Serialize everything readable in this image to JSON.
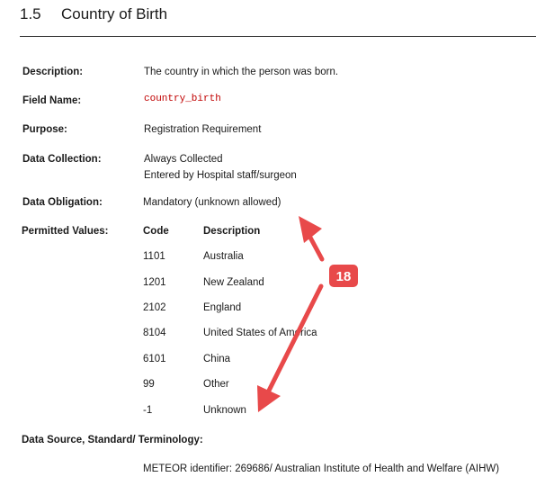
{
  "section": {
    "number": "1.5",
    "title": "Country of Birth"
  },
  "fields": {
    "description_label": "Description:",
    "description_value": "The country in which the person was born.",
    "field_name_label": "Field Name:",
    "field_name_value": "country_birth",
    "purpose_label": "Purpose:",
    "purpose_value": "Registration Requirement",
    "data_collection_label": "Data Collection:",
    "data_collection_line1": "Always Collected",
    "data_collection_line2": "Entered by Hospital staff/surgeon",
    "data_obligation_label": "Data Obligation:",
    "data_obligation_value": "Mandatory (unknown allowed)",
    "permitted_values_label": "Permitted Values:",
    "data_source_label": "Data Source, Standard/ Terminology:",
    "data_source_value": "METEOR identifier: 269686/ Australian Institute of Health and Welfare (AIHW)"
  },
  "permitted_values": {
    "headers": [
      "Code",
      "Description"
    ],
    "rows": [
      [
        "1101",
        "Australia"
      ],
      [
        "1201",
        "New Zealand"
      ],
      [
        "2102",
        "England"
      ],
      [
        "8104",
        "United States of America"
      ],
      [
        "6101",
        "China"
      ],
      [
        "99",
        "Other"
      ],
      [
        "-1",
        "Unknown"
      ]
    ]
  },
  "annotation": {
    "badge_text": "18",
    "arrow_color": "#e8494a"
  }
}
